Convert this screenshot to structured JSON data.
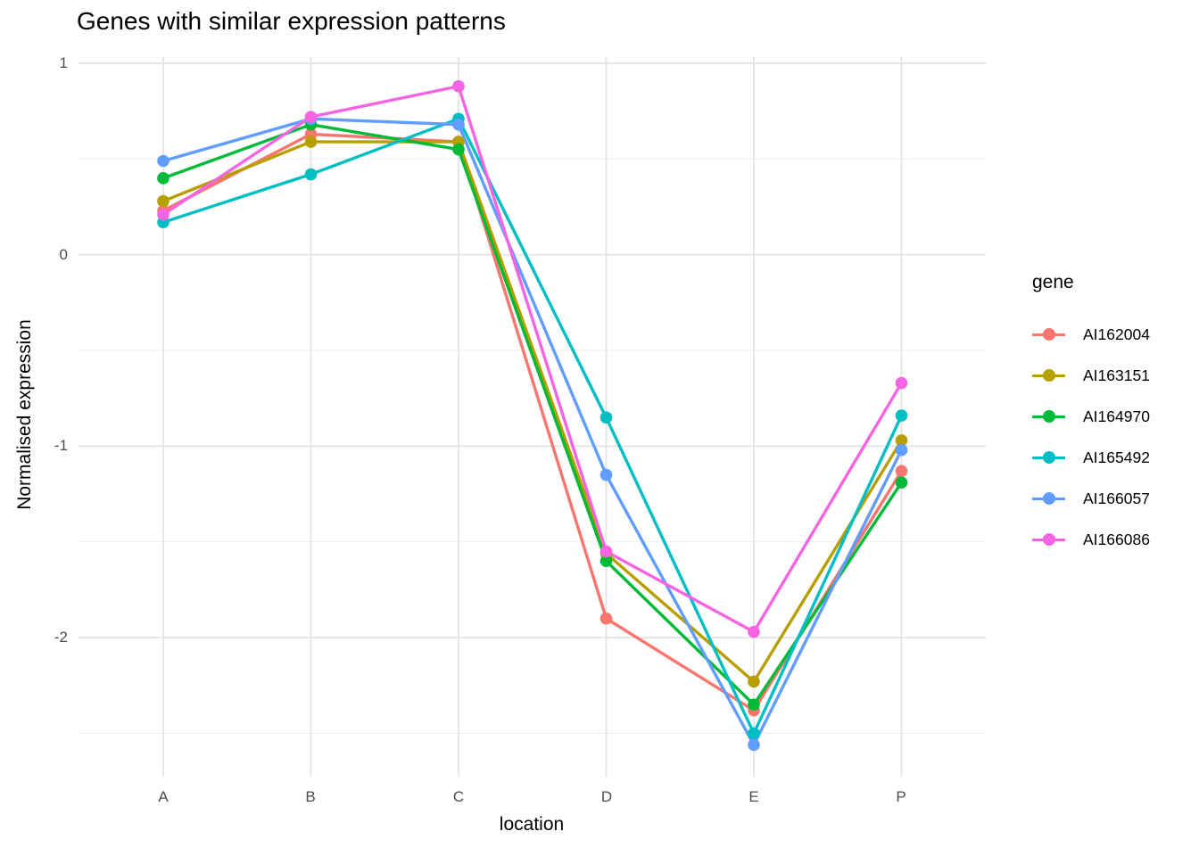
{
  "chart_data": {
    "type": "line",
    "title": "Genes with similar expression patterns",
    "xlabel": "location",
    "ylabel": "Normalised expression",
    "categories": [
      "A",
      "B",
      "C",
      "D",
      "E",
      "P"
    ],
    "ytick_labels": [
      "1",
      "0",
      "-1",
      "-2"
    ],
    "yticks": [
      1,
      0,
      -1,
      -2
    ],
    "minor_yticks": [
      0.5,
      -0.5,
      -1.5,
      -2.5
    ],
    "ylim": [
      -2.72,
      1.04
    ],
    "grid": "horizontal major+minor, vertical major per category",
    "background": "#ffffff",
    "grid_color_major": "#e3e3e3",
    "grid_color_minor": "#efefef",
    "tick_label_color": "#4d4d4d",
    "legend": {
      "title": "gene",
      "position": "right"
    },
    "series": [
      {
        "name": "AI162004",
        "color": "#F8766D",
        "values": [
          0.23,
          0.63,
          0.59,
          -1.9,
          -2.38,
          -1.13
        ]
      },
      {
        "name": "AI163151",
        "color": "#B79F00",
        "values": [
          0.28,
          0.59,
          0.59,
          -1.56,
          -2.23,
          -0.97
        ]
      },
      {
        "name": "AI164970",
        "color": "#00BA38",
        "values": [
          0.4,
          0.68,
          0.55,
          -1.6,
          -2.35,
          -1.19
        ]
      },
      {
        "name": "AI165492",
        "color": "#00BFC4",
        "values": [
          0.17,
          0.42,
          0.71,
          -0.85,
          -2.5,
          -0.84
        ]
      },
      {
        "name": "AI166057",
        "color": "#619CFF",
        "values": [
          0.49,
          0.71,
          0.68,
          -1.15,
          -2.56,
          -1.02
        ]
      },
      {
        "name": "AI166086",
        "color": "#F564E3",
        "values": [
          0.21,
          0.72,
          0.88,
          -1.55,
          -1.97,
          -0.67
        ]
      }
    ]
  }
}
